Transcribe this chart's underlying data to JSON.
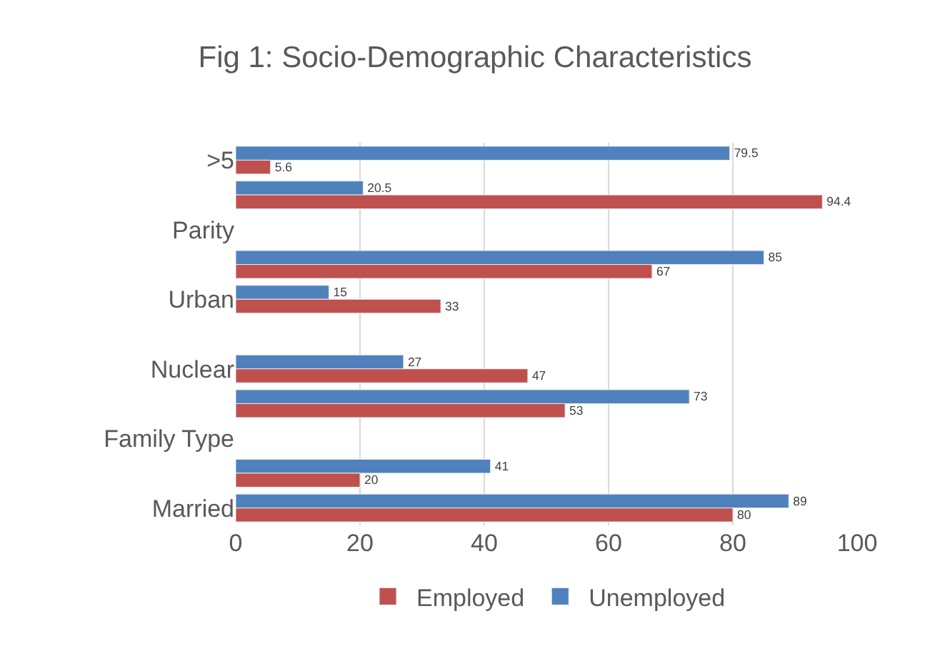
{
  "chart_data": {
    "type": "bar",
    "orientation": "horizontal",
    "title": "Fig 1: Socio-Demographic Characteristics",
    "categories": [
      ">5",
      null,
      "Parity",
      null,
      "Urban",
      null,
      "Nuclear",
      null,
      "Family Type",
      null,
      "Married"
    ],
    "series": [
      {
        "name": "Employed",
        "color": "#c0504d",
        "values": [
          5.6,
          94.4,
          null,
          67,
          33,
          null,
          47,
          53,
          null,
          20,
          80
        ]
      },
      {
        "name": "Unemployed",
        "color": "#4f81bd",
        "values": [
          79.5,
          20.5,
          null,
          85,
          15,
          null,
          27,
          73,
          null,
          41,
          89
        ]
      }
    ],
    "xlim": [
      0,
      100
    ],
    "xticks": [
      0,
      20,
      40,
      60,
      80,
      100
    ],
    "grid": "x",
    "legend": "bottom",
    "data_labels": true
  }
}
